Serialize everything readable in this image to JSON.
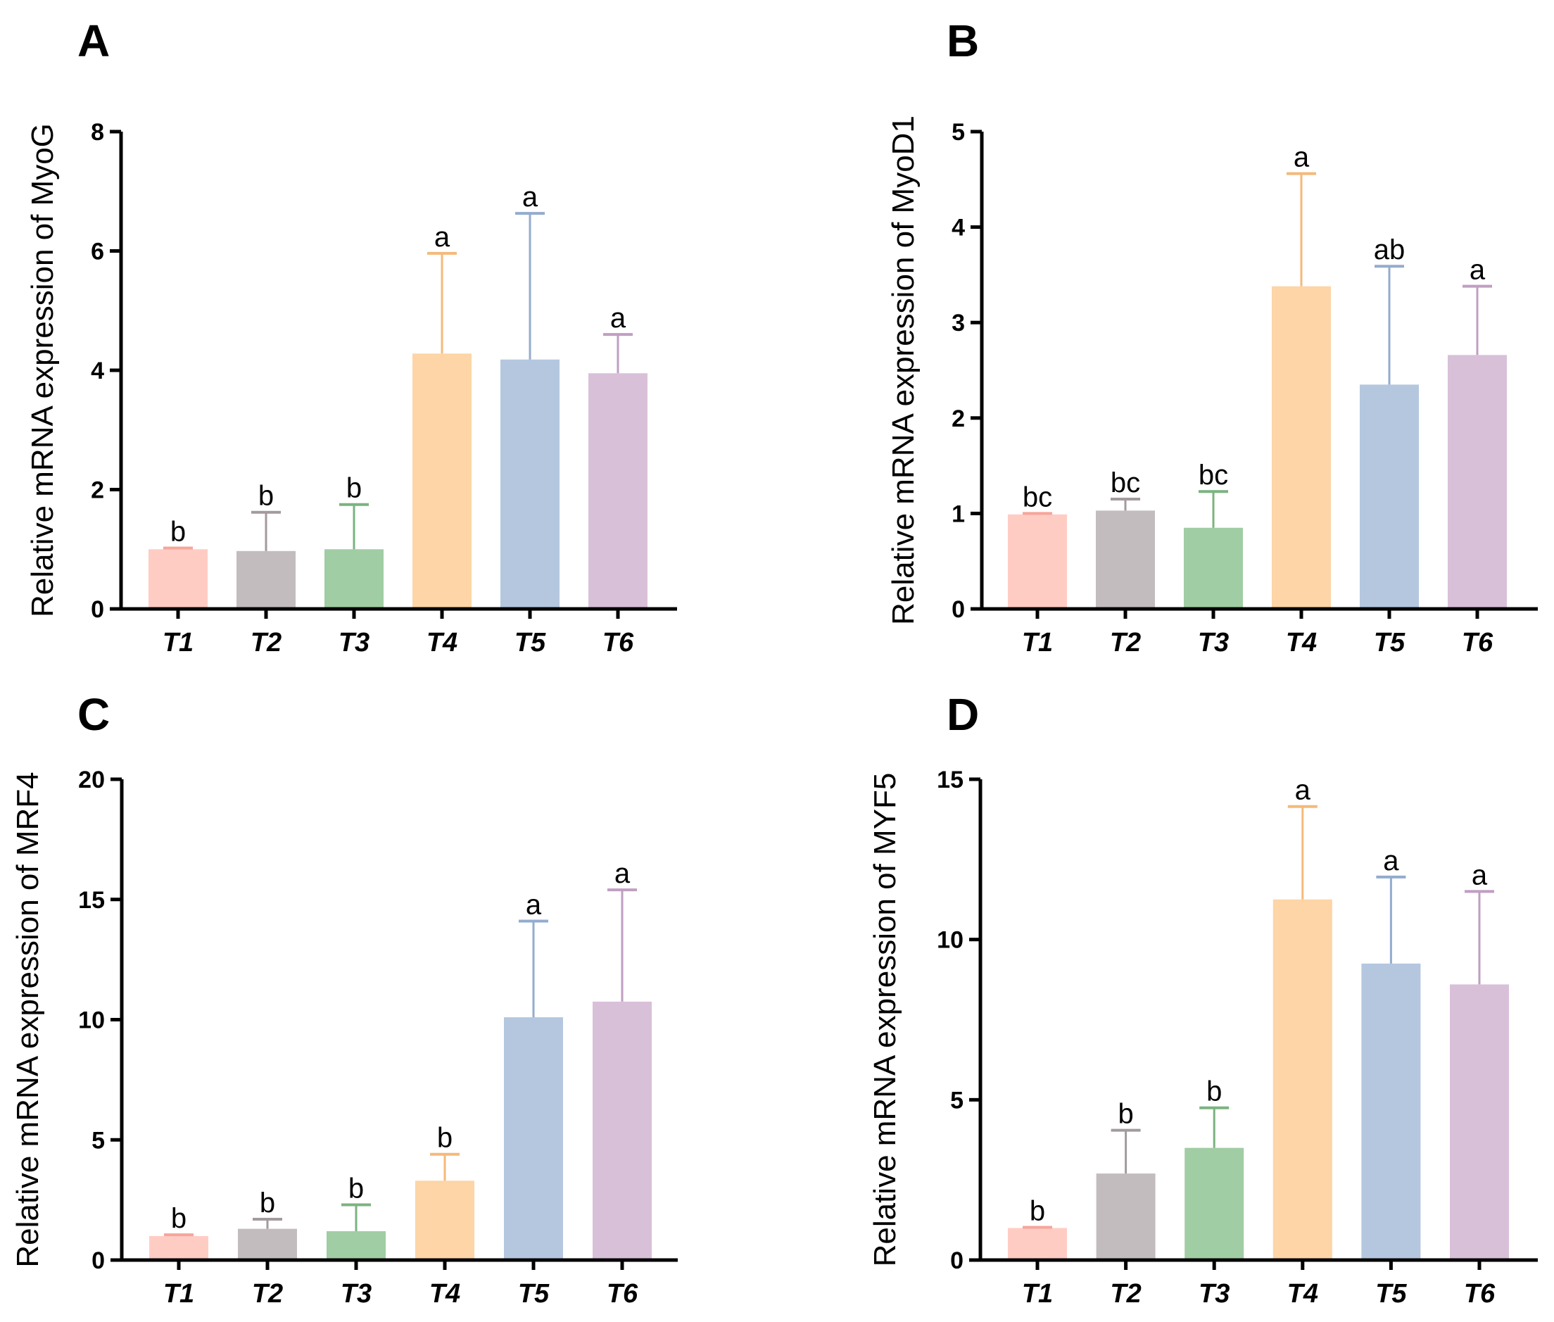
{
  "chart_data": [
    {
      "panel": "A",
      "type": "bar",
      "title": "",
      "ylabel": "Relative mRNA expression of MyoG",
      "xlabel": "",
      "ylim": [
        0,
        8
      ],
      "yticks": [
        0,
        2,
        4,
        6,
        8
      ],
      "categories": [
        "T1",
        "T2",
        "T3",
        "T4",
        "T5",
        "T6"
      ],
      "values": [
        1.0,
        0.97,
        1.0,
        4.28,
        4.18,
        3.95
      ],
      "errors": [
        0.02,
        0.65,
        0.75,
        1.68,
        2.45,
        0.65
      ],
      "significance": [
        "b",
        "b",
        "b",
        "a",
        "a",
        "a"
      ]
    },
    {
      "panel": "B",
      "type": "bar",
      "title": "",
      "ylabel": "Relative mRNA expression of MyoD1",
      "xlabel": "",
      "ylim": [
        0,
        5
      ],
      "yticks": [
        0,
        1,
        2,
        3,
        4,
        5
      ],
      "categories": [
        "T1",
        "T2",
        "T3",
        "T4",
        "T5",
        "T6"
      ],
      "values": [
        0.99,
        1.03,
        0.85,
        3.38,
        2.35,
        2.66
      ],
      "errors": [
        0.01,
        0.12,
        0.38,
        1.18,
        1.24,
        0.72
      ],
      "significance": [
        "bc",
        "bc",
        "bc",
        "a",
        "ab",
        "a"
      ]
    },
    {
      "panel": "C",
      "type": "bar",
      "title": "",
      "ylabel": "Relative mRNA expression of MRF4",
      "xlabel": "",
      "ylim": [
        0,
        20
      ],
      "yticks": [
        0,
        5,
        10,
        15,
        20
      ],
      "categories": [
        "T1",
        "T2",
        "T3",
        "T4",
        "T5",
        "T6"
      ],
      "values": [
        1.0,
        1.3,
        1.2,
        3.3,
        10.1,
        10.75
      ],
      "errors": [
        0.05,
        0.4,
        1.1,
        1.1,
        4.0,
        4.65
      ],
      "significance": [
        "b",
        "b",
        "b",
        "b",
        "a",
        "a"
      ]
    },
    {
      "panel": "D",
      "type": "bar",
      "title": "",
      "ylabel": "Relative mRNA expression of MYF5",
      "xlabel": "",
      "ylim": [
        0,
        15
      ],
      "yticks": [
        0,
        5,
        10,
        15
      ],
      "categories": [
        "T1",
        "T2",
        "T3",
        "T4",
        "T5",
        "T6"
      ],
      "values": [
        1.0,
        2.7,
        3.5,
        11.25,
        9.25,
        8.6
      ],
      "errors": [
        0.02,
        1.35,
        1.25,
        2.9,
        2.7,
        2.9
      ],
      "significance": [
        "b",
        "b",
        "b",
        "a",
        "a",
        "a"
      ]
    }
  ],
  "colors": {
    "bars": [
      "#FFCCC4",
      "#C3BCBF",
      "#A1CDA4",
      "#FDD5A6",
      "#B4C7DF",
      "#D9C0D9"
    ],
    "errors": [
      "#F7A59A",
      "#A39A9E",
      "#7BB380",
      "#F5B97A",
      "#93ACCE",
      "#BF9FC1"
    ],
    "axis": "#000000"
  }
}
